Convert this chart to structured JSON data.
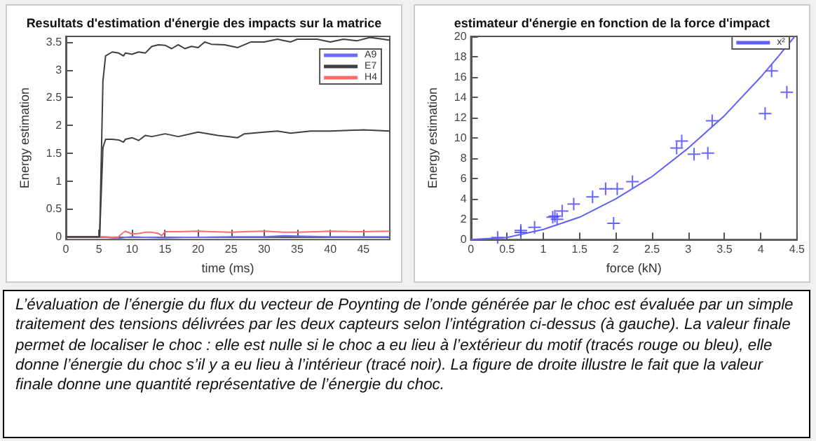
{
  "chart_data": [
    {
      "type": "line",
      "title": "Resultats d'estimation d'énergie des impacts sur la matrice",
      "xlabel": "time (ms)",
      "ylabel": "Energy estimation",
      "xlim": [
        0,
        49
      ],
      "xticks": [
        0,
        5,
        10,
        15,
        20,
        25,
        30,
        35,
        40,
        45
      ],
      "ylim": [
        -0.05,
        3.6
      ],
      "yticks": [
        0,
        0.5,
        1,
        1.5,
        2,
        2.5,
        3,
        3.5
      ],
      "grid": false,
      "legend": "top right",
      "marker": "none",
      "line_style": "solid",
      "series": [
        {
          "name": "A9",
          "color": "#6b6bff",
          "x": [
            0,
            5,
            6,
            7,
            8,
            9,
            10,
            12,
            15,
            18,
            20,
            25,
            30,
            33,
            36,
            40,
            45,
            49
          ],
          "values": [
            0,
            0,
            -0.01,
            -0.02,
            -0.03,
            -0.01,
            0,
            -0.01,
            -0.02,
            -0.01,
            -0.01,
            0,
            0,
            0.02,
            0.01,
            0,
            0,
            0
          ]
        },
        {
          "name": "E7",
          "color": "#404040",
          "x": [
            0,
            5.1,
            5.6,
            6,
            7,
            8,
            8.7,
            9,
            10,
            11,
            12,
            13,
            14,
            15,
            16,
            17,
            18,
            19,
            20,
            21,
            22,
            24,
            26,
            28,
            30,
            32,
            34,
            35,
            38,
            40,
            42,
            44,
            46,
            48,
            49
          ],
          "values": [
            0,
            0,
            2.8,
            3.25,
            3.32,
            3.3,
            3.25,
            3.3,
            3.28,
            3.32,
            3.3,
            3.42,
            3.45,
            3.44,
            3.38,
            3.45,
            3.38,
            3.42,
            3.4,
            3.5,
            3.46,
            3.45,
            3.4,
            3.5,
            3.5,
            3.55,
            3.5,
            3.55,
            3.55,
            3.5,
            3.55,
            3.52,
            3.58,
            3.55,
            3.53
          ]
        },
        {
          "name": "H4",
          "color": "#ff6b6b",
          "x": [
            0,
            5,
            6,
            7,
            7.8,
            8.5,
            9,
            10,
            11,
            12,
            13,
            14,
            14.5,
            15,
            17,
            20,
            22,
            25,
            27,
            30,
            33,
            35,
            38,
            40,
            45,
            49
          ],
          "values": [
            0,
            0,
            0,
            -0.01,
            -0.02,
            0.06,
            0.1,
            0.05,
            0.06,
            0.08,
            0.08,
            0.06,
            0.02,
            0.09,
            0.09,
            0.1,
            0.09,
            0.08,
            0.09,
            0.1,
            0.08,
            0.08,
            0.09,
            0.1,
            0.09,
            0.1
          ]
        },
        {
          "color": "#404040",
          "x": [
            0,
            5.1,
            5.6,
            6,
            7,
            8,
            8.7,
            9,
            10,
            11,
            12,
            13,
            15,
            17,
            20,
            23,
            26,
            27,
            30,
            32,
            34,
            37,
            40,
            45,
            49
          ],
          "values": [
            0,
            0,
            1.6,
            1.75,
            1.75,
            1.74,
            1.7,
            1.75,
            1.78,
            1.73,
            1.82,
            1.8,
            1.85,
            1.8,
            1.88,
            1.82,
            1.78,
            1.85,
            1.88,
            1.9,
            1.86,
            1.9,
            1.9,
            1.92,
            1.9
          ]
        }
      ],
      "annotations": [
        "L’évaluation de l’énergie du flux du vecteur de Poynting de l’onde générée par le choc est évaluée par un simple traitement des tensions délivrées par les deux capteurs selon l’intégration ci-dessus (à gauche). La valeur finale permet de localiser le choc : elle est nulle si le choc a eu lieu à l’extérieur du motif (tracés rouge ou bleu), elle donne l’énergie du choc s’il y a eu lieu à l’intérieur (tracé noir). La figure de droite illustre le fait que la valeur finale donne une quantité représentative de l’énergie du choc."
      ]
    },
    {
      "type": "scatter",
      "title": "estimateur d'énergie en fonction de la force d'impact",
      "xlabel": "force (kN)",
      "ylabel": "Energy estimation",
      "xlim": [
        0,
        4.5
      ],
      "xticks": [
        0,
        0.5,
        1,
        1.5,
        2,
        2.5,
        3,
        3.5,
        4,
        4.5
      ],
      "ylim": [
        0,
        20
      ],
      "yticks": [
        0,
        2,
        4,
        6,
        8,
        10,
        12,
        14,
        16,
        18,
        20
      ],
      "grid": false,
      "legend": "top right",
      "marker": "cross",
      "series": [
        {
          "color": "#4040ff",
          "x": [
            0.37,
            0.69,
            0.69,
            0.88,
            1.13,
            1.16,
            1.19,
            1.26,
            1.42,
            1.68,
            1.86,
            1.97,
            2.02,
            2.23,
            2.84,
            2.91,
            3.08,
            3.27,
            3.33,
            4.06,
            4.15,
            4.36
          ],
          "values": [
            0.2,
            0.9,
            0.7,
            1.2,
            2.2,
            2.3,
            2.0,
            2.8,
            3.5,
            4.2,
            5.0,
            1.6,
            5.0,
            5.7,
            9.0,
            9.7,
            8.4,
            8.5,
            11.7,
            12.4,
            16.6,
            14.5
          ]
        },
        {
          "name": "x²",
          "type": "line",
          "marker": "none",
          "color": "#6060ff",
          "x": [
            0,
            0.5,
            1,
            1.5,
            2,
            2.5,
            3,
            3.5,
            4,
            4.25,
            4.47
          ],
          "values": [
            0,
            0.2,
            1,
            2.2,
            4,
            6.2,
            9,
            12.2,
            16,
            18.1,
            20
          ]
        }
      ]
    }
  ]
}
